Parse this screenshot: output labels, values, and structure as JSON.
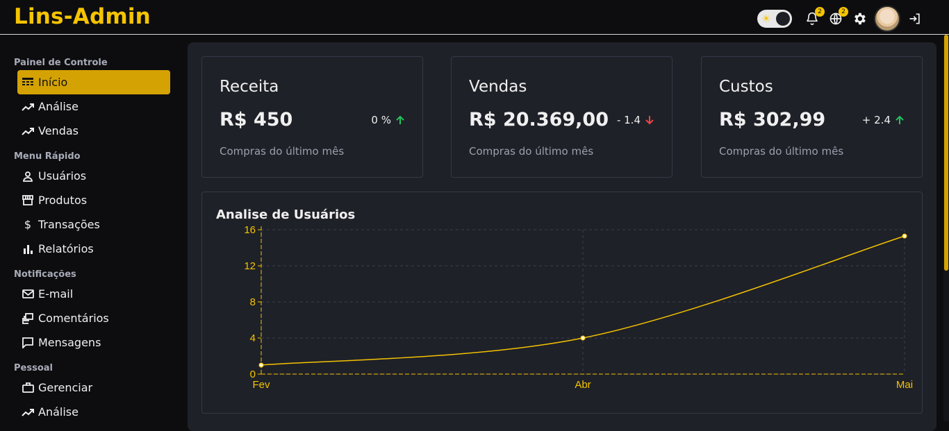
{
  "app": {
    "title": "Lins-Admin"
  },
  "header": {
    "notifications_badge": "2",
    "language_badge": "2"
  },
  "sidebar": {
    "sections": [
      {
        "title": "Painel de Controle"
      },
      {
        "title": "Menu Rápido"
      },
      {
        "title": "Notificações"
      },
      {
        "title": "Pessoal"
      }
    ],
    "items": [
      {
        "label": "Início",
        "icon": "table-icon",
        "active": true
      },
      {
        "label": "Análise",
        "icon": "trending-icon"
      },
      {
        "label": "Vendas",
        "icon": "trending-icon"
      },
      {
        "label": "Usuários",
        "icon": "user-icon"
      },
      {
        "label": "Produtos",
        "icon": "store-icon"
      },
      {
        "label": "Transações",
        "icon": "dollar-icon"
      },
      {
        "label": "Relatórios",
        "icon": "bar-chart-icon"
      },
      {
        "label": "E-mail",
        "icon": "mail-icon"
      },
      {
        "label": "Comentários",
        "icon": "comments-icon"
      },
      {
        "label": "Mensagens",
        "icon": "message-icon"
      },
      {
        "label": "Gerenciar",
        "icon": "briefcase-icon"
      },
      {
        "label": "Análise",
        "icon": "trending-icon"
      }
    ]
  },
  "cards": [
    {
      "title": "Receita",
      "value": "R$ 450",
      "delta": "0 %",
      "direction": "up",
      "subtitle": "Compras do último mês"
    },
    {
      "title": "Vendas",
      "value": "R$ 20.369,00",
      "delta": "- 1.4",
      "direction": "down",
      "subtitle": "Compras do último mês"
    },
    {
      "title": "Custos",
      "value": "R$ 302,99",
      "delta": "+ 2.4",
      "direction": "up",
      "subtitle": "Compras do último mês"
    }
  ],
  "colors": {
    "accent": "#f5c400",
    "up": "#22c55e",
    "down": "#ef4444"
  },
  "chart_data": {
    "type": "line",
    "title": "Analise de Usuários",
    "categories": [
      "Fev",
      "Abr",
      "Mai"
    ],
    "x": [
      0,
      2,
      4
    ],
    "values": [
      1,
      4,
      15.3
    ],
    "yticks": [
      0,
      4,
      8,
      12,
      16
    ],
    "ylim": [
      0,
      16
    ],
    "grid": true
  }
}
